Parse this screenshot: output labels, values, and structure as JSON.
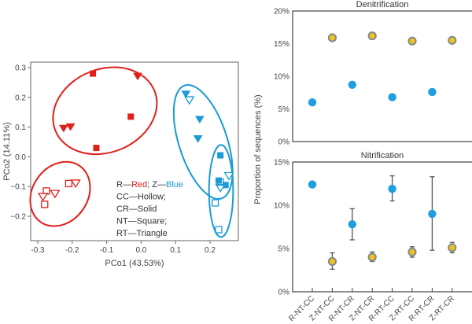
{
  "chart_data": [
    {
      "type": "scatter",
      "title": "",
      "xlabel": "PCo1 (43.53%)",
      "ylabel": "PCo2 (14.11%)",
      "xlim": [
        -0.32,
        0.28
      ],
      "ylim": [
        -0.28,
        0.32
      ],
      "xticks": [
        -0.3,
        -0.2,
        -0.1,
        0.0,
        0.1,
        0.2
      ],
      "xtick_labels": [
        "-0.3",
        "-0.2",
        "-0.1",
        "0.0",
        "0.1",
        "0.2"
      ],
      "yticks": [
        0.3,
        0.2,
        0.1,
        0.0,
        -0.1,
        -0.2
      ],
      "ytick_labels": [
        "0.3",
        "0.2",
        "0.1",
        "0.0",
        "−0.1",
        "−0.2"
      ],
      "grid": false,
      "colors": {
        "R": "#e0201b",
        "Z": "#1a9ad6"
      },
      "legend_lines": [
        {
          "parts": [
            {
              "text": "R—",
              "color": "#333333"
            },
            {
              "text": "Red",
              "color": "#e0201b"
            },
            {
              "text": "; Z—",
              "color": "#333333"
            },
            {
              "text": "Blue",
              "color": "#1a9ad6"
            }
          ]
        },
        {
          "parts": [
            {
              "text": "CC—Hollow;",
              "color": "#333333"
            }
          ]
        },
        {
          "parts": [
            {
              "text": "CR—Solid",
              "color": "#333333"
            }
          ]
        },
        {
          "parts": [
            {
              "text": "NT—Square;",
              "color": "#333333"
            }
          ]
        },
        {
          "parts": [
            {
              "text": "RT—Triangle",
              "color": "#333333"
            }
          ]
        }
      ],
      "legend_placement": "bottom-center",
      "series": [
        {
          "name": "R-NT-CR",
          "color": "R",
          "marker": "square",
          "filled": true,
          "points": [
            [
              -0.14,
              0.28
            ],
            [
              -0.03,
              0.135
            ],
            [
              -0.13,
              0.03
            ]
          ]
        },
        {
          "name": "R-RT-CR",
          "color": "R",
          "marker": "triangle-down",
          "filled": true,
          "points": [
            [
              -0.01,
              0.27
            ],
            [
              -0.225,
              0.095
            ],
            [
              -0.205,
              0.1
            ]
          ]
        },
        {
          "name": "R-NT-CC",
          "color": "R",
          "marker": "square",
          "filled": false,
          "points": [
            [
              -0.21,
              -0.09
            ],
            [
              -0.275,
              -0.115
            ],
            [
              -0.28,
              -0.16
            ]
          ]
        },
        {
          "name": "R-RT-CC",
          "color": "R",
          "marker": "triangle-down",
          "filled": false,
          "points": [
            [
              -0.19,
              -0.09
            ],
            [
              -0.25,
              -0.125
            ],
            [
              -0.285,
              -0.135
            ]
          ]
        },
        {
          "name": "Z-RT-CR",
          "color": "Z",
          "marker": "triangle-down",
          "filled": true,
          "points": [
            [
              0.13,
              0.21
            ],
            [
              0.17,
              0.125
            ],
            [
              0.165,
              0.06
            ]
          ]
        },
        {
          "name": "Z-NT-CR",
          "color": "Z",
          "marker": "square",
          "filled": true,
          "points": [
            [
              0.23,
              0.005
            ],
            [
              0.225,
              -0.08
            ],
            [
              0.245,
              -0.095
            ]
          ]
        },
        {
          "name": "Z-RT-CC",
          "color": "Z",
          "marker": "triangle-down",
          "filled": false,
          "points": [
            [
              0.14,
              0.19
            ],
            [
              0.255,
              -0.065
            ],
            [
              0.23,
              -0.105
            ]
          ]
        },
        {
          "name": "Z-NT-CC",
          "color": "Z",
          "marker": "square",
          "filled": false,
          "points": [
            [
              0.23,
              -0.085
            ],
            [
              0.215,
              -0.155
            ],
            [
              0.225,
              -0.245
            ]
          ]
        }
      ],
      "ellipses": [
        {
          "group": "R-CR",
          "color": "R",
          "center": [
            -0.105,
            0.155
          ],
          "rx": 0.155,
          "ry": 0.14,
          "angle": -22
        },
        {
          "group": "R-CC",
          "color": "R",
          "center": [
            -0.235,
            -0.125
          ],
          "rx": 0.08,
          "ry": 0.115,
          "angle": 35
        },
        {
          "group": "Z-RT",
          "color": "Z",
          "center": [
            0.18,
            0.05
          ],
          "rx": 0.07,
          "ry": 0.2,
          "angle": -18
        },
        {
          "group": "Z-NT",
          "color": "Z",
          "center": [
            0.232,
            -0.115
          ],
          "rx": 0.035,
          "ry": 0.155,
          "angle": 0
        }
      ]
    },
    {
      "type": "scatter",
      "title": "Denitrification",
      "xlabel": "",
      "ylabel": "Proportion of sequences (%)",
      "ylim": [
        0,
        20
      ],
      "yticks": [
        0,
        5,
        10,
        15,
        20
      ],
      "ytick_labels": [
        "0%",
        "5%",
        "10%",
        "15%",
        "20%"
      ],
      "categories": [
        "R-NT-CC",
        "Z-NT-CC",
        "R-NT-CR",
        "Z-NT-CR",
        "R-RT-CC",
        "Z-RT-CC",
        "R-RT-CR",
        "Z-RT-CR"
      ],
      "values": [
        6.0,
        15.9,
        8.7,
        16.2,
        6.8,
        15.4,
        7.6,
        15.5
      ],
      "errors": [
        null,
        null,
        null,
        null,
        null,
        null,
        null,
        null
      ],
      "point_styles": [
        "R",
        "Z",
        "R",
        "Z",
        "R",
        "Z",
        "R",
        "Z"
      ],
      "grid": false
    },
    {
      "type": "scatter",
      "title": "Nitrification",
      "xlabel": "",
      "ylabel": "Proportion of sequences (%)",
      "ylim": [
        0,
        15
      ],
      "yticks": [
        0,
        5,
        10,
        15
      ],
      "ytick_labels": [
        "0%",
        "5%",
        "10%",
        "15%"
      ],
      "categories": [
        "R-NT-CC",
        "Z-NT-CC",
        "R-NT-CR",
        "Z-NT-CR",
        "R-RT-CC",
        "Z-RT-CC",
        "R-RT-CR",
        "Z-RT-CR"
      ],
      "values": [
        12.4,
        3.5,
        7.8,
        4.0,
        11.9,
        4.6,
        9.0,
        5.1
      ],
      "errors": [
        [
          12.4,
          12.4
        ],
        [
          2.6,
          4.5
        ],
        [
          6.0,
          9.6
        ],
        [
          3.5,
          4.6
        ],
        [
          10.5,
          13.4
        ],
        [
          4.0,
          5.2
        ],
        [
          4.8,
          13.3
        ],
        [
          4.5,
          5.7
        ]
      ],
      "point_styles": [
        "R",
        "Z",
        "R",
        "Z",
        "R",
        "Z",
        "R",
        "Z"
      ],
      "grid": false
    }
  ],
  "styles": {
    "R_fill": "#1f9ee0",
    "Z_fill": "#f2c21a",
    "Z_stroke": "#7f8b8e",
    "errorbar": "#555555",
    "axis": "#555555"
  }
}
